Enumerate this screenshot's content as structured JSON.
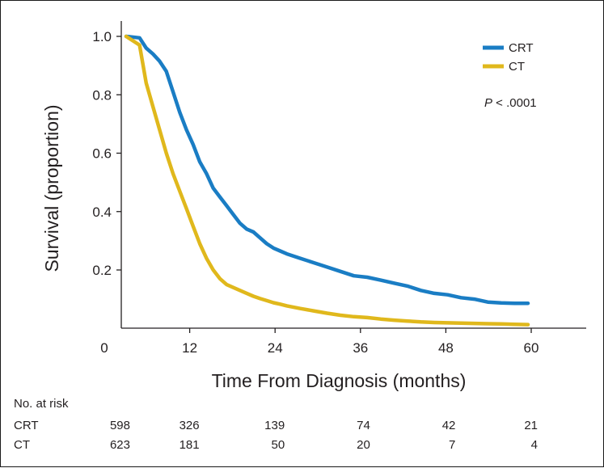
{
  "chart_data": {
    "type": "line",
    "title": "",
    "xlabel": "Time From Diagnosis (months)",
    "ylabel": "Survival (proportion)",
    "xlim": [
      0,
      66
    ],
    "ylim": [
      0,
      1.0
    ],
    "x_ticks": [
      0,
      12,
      24,
      36,
      48,
      60
    ],
    "x_tick_labels": [
      "0",
      "12",
      "24",
      "36",
      "48",
      "60"
    ],
    "y_ticks": [
      0.2,
      0.4,
      0.6,
      0.8,
      1.0
    ],
    "y_tick_labels": [
      "0.2",
      "0.4",
      "0.6",
      "0.8",
      "1.0"
    ],
    "grid": false,
    "legend_position": "top-right",
    "annotation": {
      "prefix": "P",
      "text": " < .0001"
    },
    "series": [
      {
        "name": "CRT",
        "color": "#1a7dc4",
        "x": [
          0,
          2,
          3,
          4,
          5,
          6,
          7,
          8,
          9,
          10,
          11,
          12,
          13,
          14,
          15,
          16,
          17,
          18,
          19,
          20,
          21,
          22,
          23,
          24,
          26,
          28,
          30,
          32,
          34,
          36,
          38,
          40,
          42,
          44,
          46,
          48,
          50,
          52,
          54,
          56,
          58,
          60
        ],
        "y": [
          1.0,
          0.995,
          0.96,
          0.94,
          0.915,
          0.88,
          0.81,
          0.74,
          0.68,
          0.63,
          0.57,
          0.53,
          0.48,
          0.45,
          0.42,
          0.39,
          0.36,
          0.34,
          0.33,
          0.31,
          0.29,
          0.275,
          0.265,
          0.255,
          0.24,
          0.225,
          0.21,
          0.195,
          0.18,
          0.175,
          0.165,
          0.155,
          0.145,
          0.13,
          0.12,
          0.115,
          0.105,
          0.1,
          0.09,
          0.087,
          0.086,
          0.086
        ]
      },
      {
        "name": "CT",
        "color": "#e0b81c",
        "x": [
          0,
          2,
          3,
          4,
          5,
          6,
          7,
          8,
          9,
          10,
          11,
          12,
          13,
          14,
          15,
          16,
          17,
          18,
          19,
          20,
          21,
          22,
          23,
          24,
          26,
          28,
          30,
          32,
          34,
          36,
          38,
          40,
          42,
          44,
          46,
          48,
          50,
          52,
          54,
          56,
          58,
          60
        ],
        "y": [
          1.0,
          0.97,
          0.84,
          0.76,
          0.68,
          0.6,
          0.53,
          0.47,
          0.41,
          0.35,
          0.29,
          0.24,
          0.2,
          0.17,
          0.15,
          0.14,
          0.13,
          0.12,
          0.11,
          0.102,
          0.095,
          0.088,
          0.083,
          0.077,
          0.068,
          0.06,
          0.052,
          0.045,
          0.04,
          0.037,
          0.032,
          0.028,
          0.025,
          0.022,
          0.02,
          0.019,
          0.018,
          0.017,
          0.016,
          0.015,
          0.014,
          0.013
        ]
      }
    ]
  },
  "risk_table": {
    "title": "No. at risk",
    "rows": [
      {
        "label": "CRT",
        "values": [
          "598",
          "326",
          "139",
          "74",
          "42",
          "21"
        ]
      },
      {
        "label": "CT",
        "values": [
          "623",
          "181",
          "50",
          "20",
          "7",
          "4"
        ]
      }
    ]
  }
}
